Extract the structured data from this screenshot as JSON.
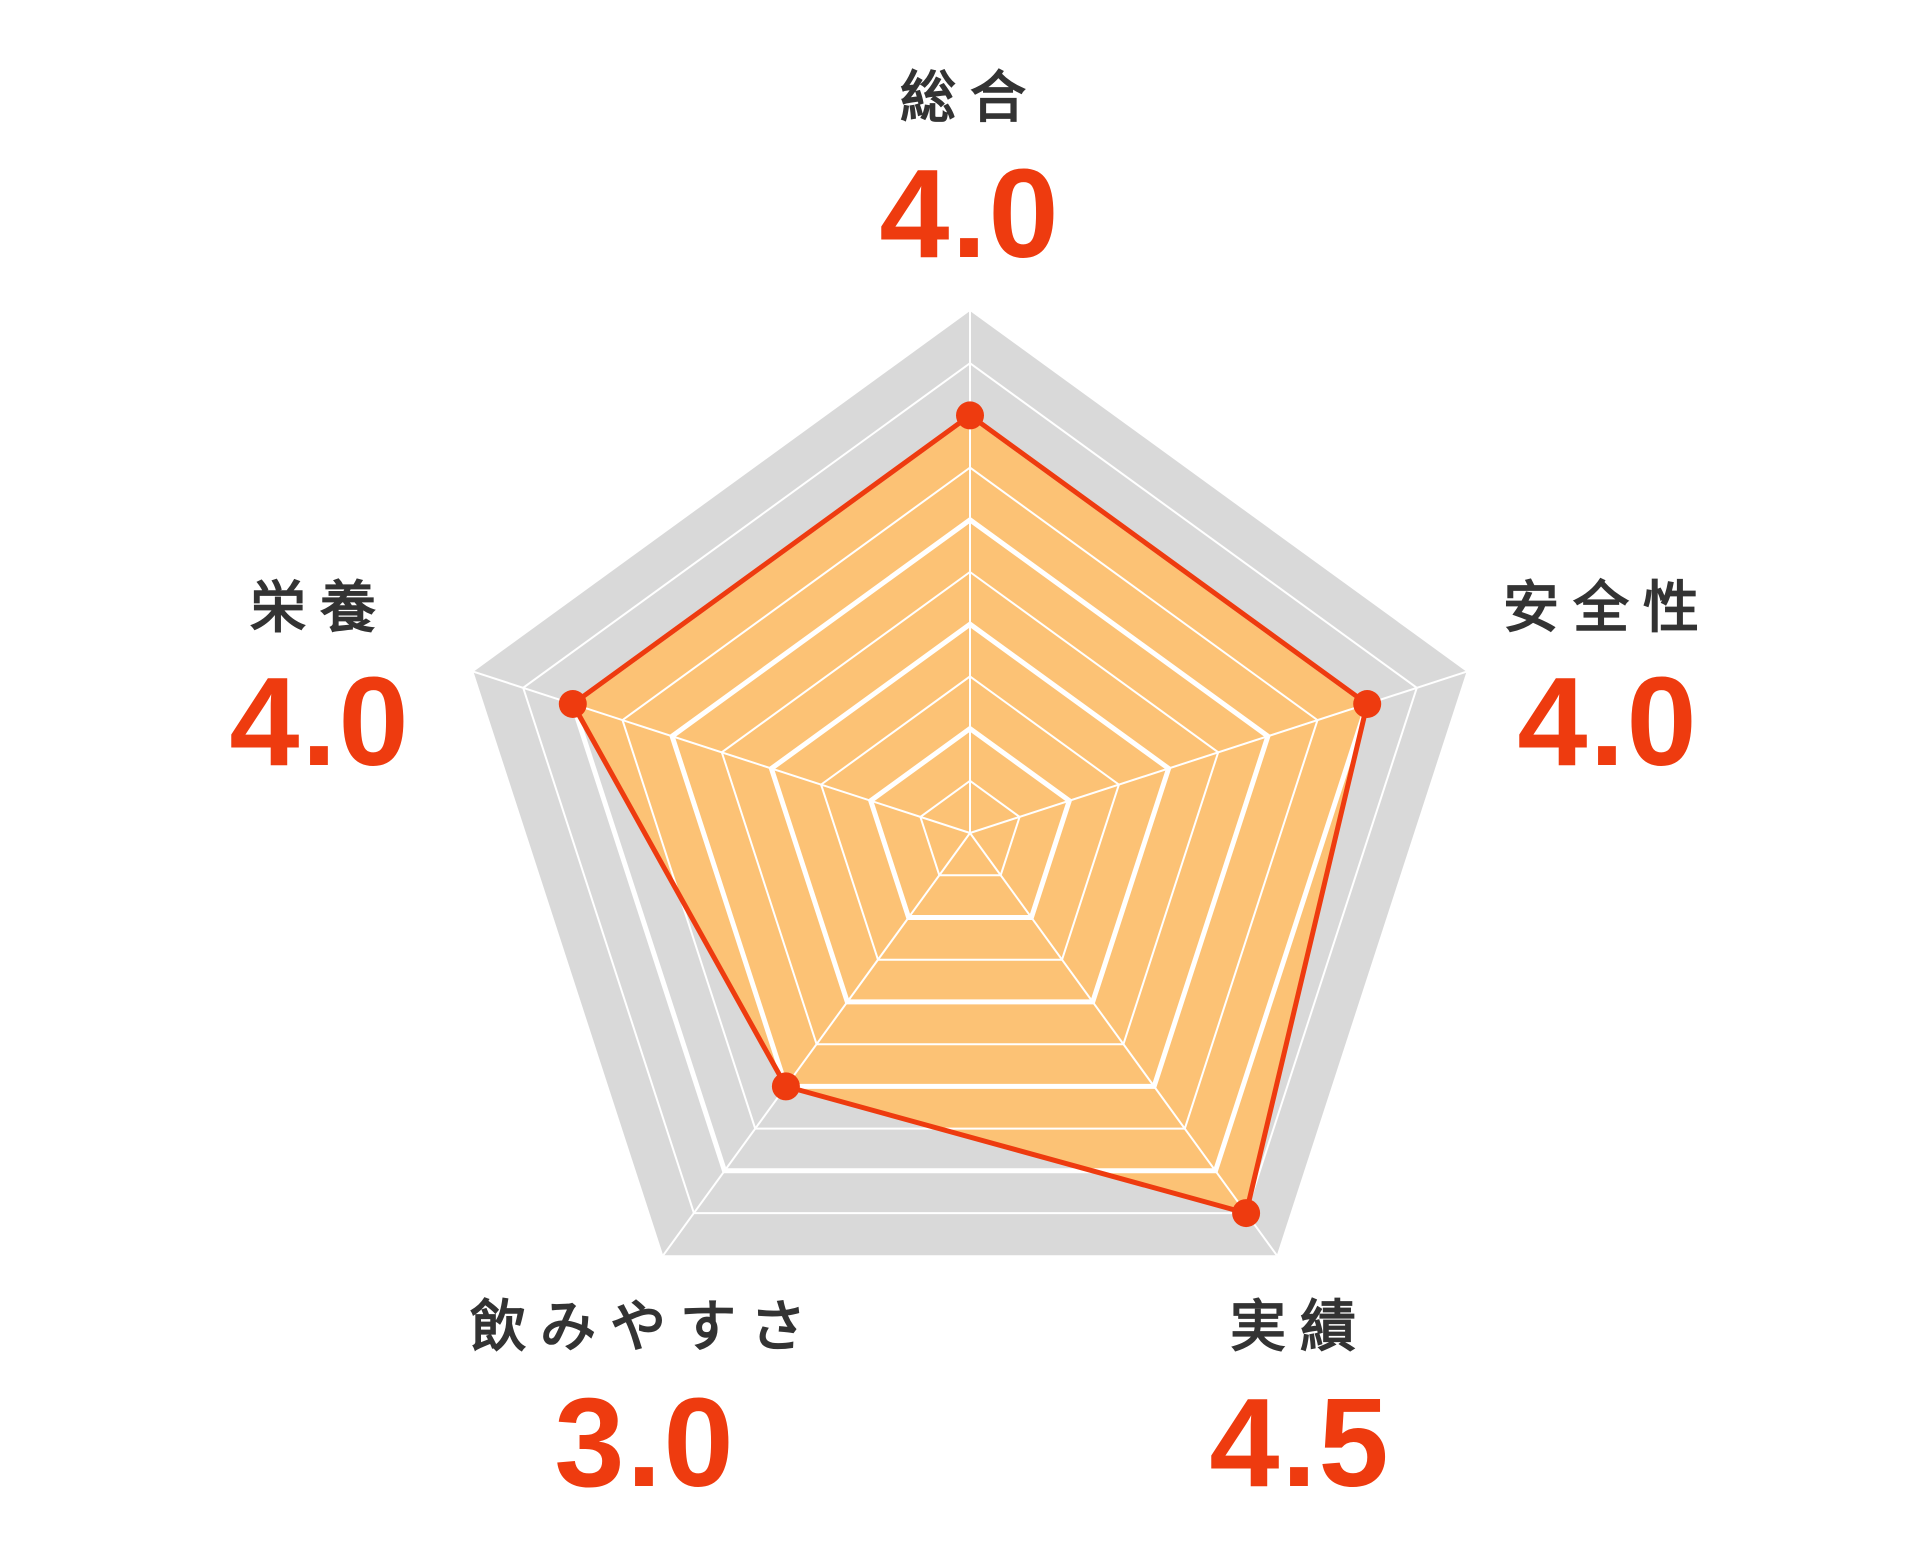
{
  "chart_data": {
    "type": "radar",
    "categories": [
      "総合",
      "安全性",
      "実績",
      "飲みやすさ",
      "栄養"
    ],
    "values": [
      4.0,
      4.0,
      4.5,
      3.0,
      4.0
    ],
    "value_labels": [
      "4.0",
      "4.0",
      "4.5",
      "3.0",
      "4.0"
    ],
    "rmax": 5,
    "ring_step": 0.5,
    "major_step": 1,
    "grid": true,
    "legend": "none"
  },
  "colors": {
    "background": "#ffffff",
    "outer_fill": "#d9d9d9",
    "grid_line": "#ffffff",
    "area_fill": "#fcc275",
    "series_line": "#ee3b0f",
    "value_text": "#ee3b0f",
    "label_text": "#333333"
  }
}
